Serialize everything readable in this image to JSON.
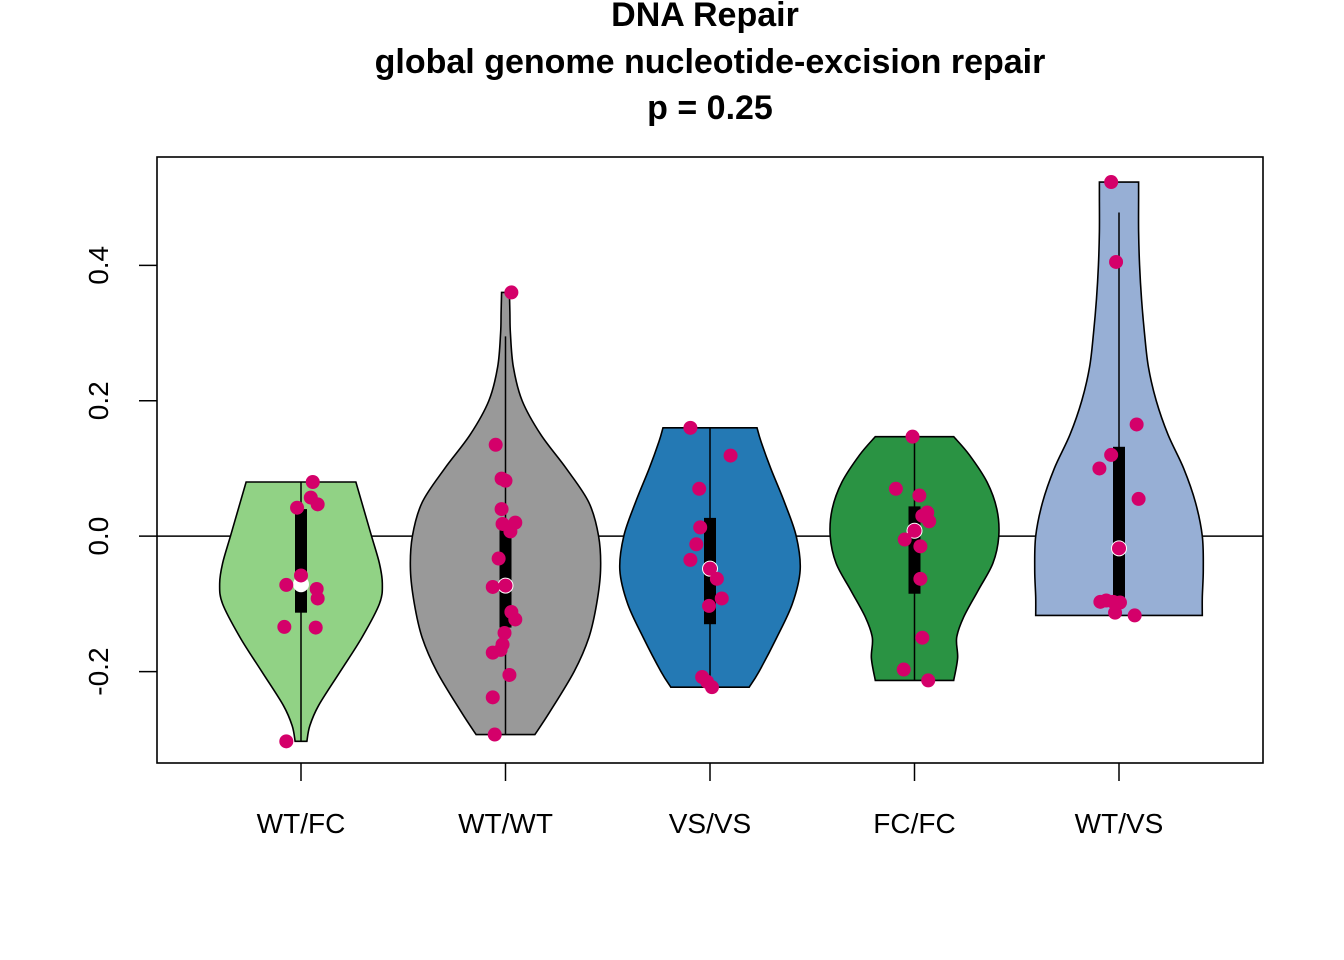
{
  "chart_data": {
    "type": "violin",
    "title_lines": [
      "DNA Repair",
      "global genome nucleotide-excision repair",
      "p = 0.25"
    ],
    "xlabel": "",
    "ylabel": "",
    "ylim": [
      -0.335,
      0.56
    ],
    "yticks": [
      {
        "value": -0.2,
        "label": "-0.2"
      },
      {
        "value": 0.0,
        "label": "0.0"
      },
      {
        "value": 0.2,
        "label": "0.2"
      },
      {
        "value": 0.4,
        "label": "0.4"
      }
    ],
    "reference_line": 0,
    "point_color": "#D4006A",
    "median_color": "#FFFFFF",
    "groups": [
      {
        "name": "WT/FC",
        "fill": "#91D285",
        "violin_min": -0.303,
        "violin_max": 0.08,
        "q1": -0.113,
        "q3": 0.04,
        "median": -0.071,
        "whisker_low": -0.303,
        "whisker_high": 0.08,
        "density": [
          [
            -0.303,
            0.06
          ],
          [
            -0.28,
            0.09
          ],
          [
            -0.25,
            0.18
          ],
          [
            -0.2,
            0.4
          ],
          [
            -0.15,
            0.62
          ],
          [
            -0.1,
            0.8
          ],
          [
            -0.07,
            0.83
          ],
          [
            -0.04,
            0.8
          ],
          [
            0.0,
            0.72
          ],
          [
            0.05,
            0.62
          ],
          [
            0.08,
            0.56
          ]
        ],
        "points": [
          [
            -0.04,
            0.042
          ],
          [
            0.12,
            0.08
          ],
          [
            0.1,
            0.057
          ],
          [
            0.17,
            0.047
          ],
          [
            -0.15,
            -0.072
          ],
          [
            0.0,
            -0.058
          ],
          [
            0.16,
            -0.078
          ],
          [
            0.17,
            -0.092
          ],
          [
            -0.17,
            -0.134
          ],
          [
            0.15,
            -0.135
          ],
          [
            -0.15,
            -0.303
          ]
        ]
      },
      {
        "name": "WT/WT",
        "fill": "#999999",
        "violin_min": -0.293,
        "violin_max": 0.36,
        "q1": -0.135,
        "q3": 0.01,
        "median": -0.073,
        "whisker_low": -0.293,
        "whisker_high": 0.295,
        "density": [
          [
            -0.293,
            0.3
          ],
          [
            -0.26,
            0.45
          ],
          [
            -0.2,
            0.7
          ],
          [
            -0.15,
            0.85
          ],
          [
            -0.1,
            0.93
          ],
          [
            -0.05,
            0.97
          ],
          [
            0.0,
            0.95
          ],
          [
            0.05,
            0.85
          ],
          [
            0.1,
            0.62
          ],
          [
            0.15,
            0.36
          ],
          [
            0.2,
            0.17
          ],
          [
            0.25,
            0.08
          ],
          [
            0.3,
            0.05
          ],
          [
            0.33,
            0.045
          ],
          [
            0.36,
            0.04
          ]
        ],
        "points": [
          [
            0.06,
            0.36
          ],
          [
            -0.1,
            0.135
          ],
          [
            -0.04,
            0.085
          ],
          [
            0.0,
            0.082
          ],
          [
            -0.04,
            0.04
          ],
          [
            -0.03,
            0.018
          ],
          [
            0.1,
            0.02
          ],
          [
            0.05,
            0.007
          ],
          [
            -0.07,
            -0.033
          ],
          [
            -0.13,
            -0.075
          ],
          [
            0.0,
            -0.073
          ],
          [
            0.06,
            -0.112
          ],
          [
            0.1,
            -0.123
          ],
          [
            -0.01,
            -0.143
          ],
          [
            -0.03,
            -0.16
          ],
          [
            -0.05,
            -0.168
          ],
          [
            -0.13,
            -0.172
          ],
          [
            0.04,
            -0.205
          ],
          [
            -0.13,
            -0.238
          ],
          [
            -0.11,
            -0.293
          ]
        ]
      },
      {
        "name": "VS/VS",
        "fill": "#2479B4",
        "violin_min": -0.223,
        "violin_max": 0.16,
        "q1": -0.13,
        "q3": 0.027,
        "median": -0.048,
        "whisker_low": -0.223,
        "whisker_high": 0.16,
        "density": [
          [
            -0.223,
            0.4
          ],
          [
            -0.2,
            0.5
          ],
          [
            -0.15,
            0.68
          ],
          [
            -0.1,
            0.84
          ],
          [
            -0.05,
            0.92
          ],
          [
            0.0,
            0.88
          ],
          [
            0.05,
            0.76
          ],
          [
            0.1,
            0.62
          ],
          [
            0.14,
            0.52
          ],
          [
            0.16,
            0.48
          ]
        ],
        "points": [
          [
            -0.2,
            0.16
          ],
          [
            0.21,
            0.119
          ],
          [
            -0.11,
            0.07
          ],
          [
            -0.1,
            0.013
          ],
          [
            -0.14,
            -0.012
          ],
          [
            -0.2,
            -0.035
          ],
          [
            0.0,
            -0.048
          ],
          [
            0.07,
            -0.063
          ],
          [
            0.12,
            -0.092
          ],
          [
            -0.01,
            -0.103
          ],
          [
            -0.08,
            -0.208
          ],
          [
            -0.03,
            -0.215
          ],
          [
            0.02,
            -0.223
          ]
        ]
      },
      {
        "name": "FC/FC",
        "fill": "#2A9343",
        "violin_min": -0.213,
        "violin_max": 0.147,
        "q1": -0.085,
        "q3": 0.044,
        "median": 0.008,
        "whisker_low": -0.213,
        "whisker_high": 0.147,
        "density": [
          [
            -0.213,
            0.4
          ],
          [
            -0.18,
            0.44
          ],
          [
            -0.15,
            0.43
          ],
          [
            -0.12,
            0.5
          ],
          [
            -0.08,
            0.65
          ],
          [
            -0.04,
            0.8
          ],
          [
            0.0,
            0.86
          ],
          [
            0.04,
            0.84
          ],
          [
            0.08,
            0.74
          ],
          [
            0.12,
            0.56
          ],
          [
            0.147,
            0.4
          ]
        ],
        "points": [
          [
            -0.02,
            0.147
          ],
          [
            -0.19,
            0.07
          ],
          [
            0.05,
            0.06
          ],
          [
            0.13,
            0.035
          ],
          [
            0.08,
            0.03
          ],
          [
            0.15,
            0.022
          ],
          [
            0.0,
            0.008
          ],
          [
            -0.1,
            -0.005
          ],
          [
            0.06,
            -0.015
          ],
          [
            0.06,
            -0.063
          ],
          [
            0.08,
            -0.15
          ],
          [
            -0.11,
            -0.197
          ],
          [
            0.14,
            -0.213
          ]
        ]
      },
      {
        "name": "WT/VS",
        "fill": "#97AFD5",
        "violin_min": -0.117,
        "violin_max": 0.523,
        "q1": -0.097,
        "q3": 0.132,
        "median": -0.018,
        "whisker_low": -0.117,
        "whisker_high": 0.478,
        "density": [
          [
            -0.117,
            0.85
          ],
          [
            -0.09,
            0.85
          ],
          [
            -0.05,
            0.86
          ],
          [
            0.0,
            0.85
          ],
          [
            0.05,
            0.78
          ],
          [
            0.1,
            0.66
          ],
          [
            0.15,
            0.5
          ],
          [
            0.2,
            0.38
          ],
          [
            0.25,
            0.3
          ],
          [
            0.3,
            0.26
          ],
          [
            0.35,
            0.23
          ],
          [
            0.4,
            0.21
          ],
          [
            0.45,
            0.2
          ],
          [
            0.5,
            0.2
          ],
          [
            0.523,
            0.2
          ]
        ],
        "points": [
          [
            -0.08,
            0.523
          ],
          [
            -0.03,
            0.405
          ],
          [
            0.18,
            0.165
          ],
          [
            -0.08,
            0.12
          ],
          [
            -0.2,
            0.1
          ],
          [
            0.2,
            0.055
          ],
          [
            0.0,
            -0.018
          ],
          [
            -0.19,
            -0.097
          ],
          [
            -0.13,
            -0.095
          ],
          [
            -0.06,
            -0.097
          ],
          [
            0.01,
            -0.098
          ],
          [
            -0.04,
            -0.113
          ],
          [
            0.16,
            -0.117
          ]
        ]
      }
    ]
  }
}
